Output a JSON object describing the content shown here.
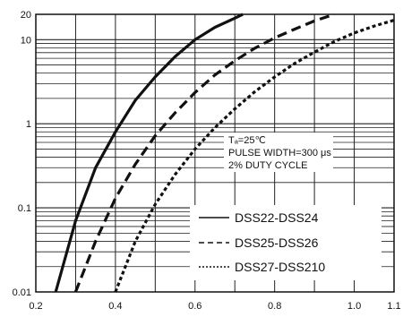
{
  "chart_data": {
    "type": "line",
    "title": "",
    "xlabel": "",
    "ylabel": "",
    "xlim": [
      0.2,
      1.1
    ],
    "ylim": [
      0.01,
      20
    ],
    "y_scale": "log",
    "grid": true,
    "x_ticks": [
      "0.2",
      "0.4",
      "0.6",
      "0.8",
      "1.0",
      "1.1"
    ],
    "y_ticks": [
      "0.01",
      "0.1",
      "1",
      "10",
      "20"
    ],
    "annotation": {
      "line1": "Tₐ=25℃",
      "line2": "PULSE WIDTH=300 μs",
      "line3": "2% DUTY CYCLE"
    },
    "legend_position": "bottom-right",
    "series": [
      {
        "name": "DSS22-DSS24",
        "style": "solid",
        "x": [
          0.25,
          0.3,
          0.35,
          0.4,
          0.45,
          0.5,
          0.55,
          0.6,
          0.65,
          0.7,
          0.72
        ],
        "y": [
          0.01,
          0.07,
          0.3,
          0.8,
          1.9,
          3.6,
          6.3,
          10,
          14,
          18,
          20
        ]
      },
      {
        "name": "DSS25-DSS26",
        "style": "dashed",
        "x": [
          0.3,
          0.35,
          0.4,
          0.45,
          0.5,
          0.55,
          0.6,
          0.65,
          0.7,
          0.75,
          0.8,
          0.85,
          0.9,
          0.95
        ],
        "y": [
          0.01,
          0.04,
          0.13,
          0.33,
          0.72,
          1.35,
          2.35,
          3.8,
          5.6,
          7.9,
          10.5,
          13.3,
          16.7,
          20
        ]
      },
      {
        "name": "DSS27-DSS210",
        "style": "dotted",
        "x": [
          0.4,
          0.45,
          0.5,
          0.55,
          0.6,
          0.65,
          0.7,
          0.75,
          0.8,
          0.85,
          0.9,
          0.95,
          1.0,
          1.05,
          1.1
        ],
        "y": [
          0.01,
          0.04,
          0.11,
          0.25,
          0.5,
          0.9,
          1.5,
          2.4,
          3.6,
          5.2,
          7.1,
          9.5,
          12,
          14.5,
          17
        ]
      }
    ]
  }
}
